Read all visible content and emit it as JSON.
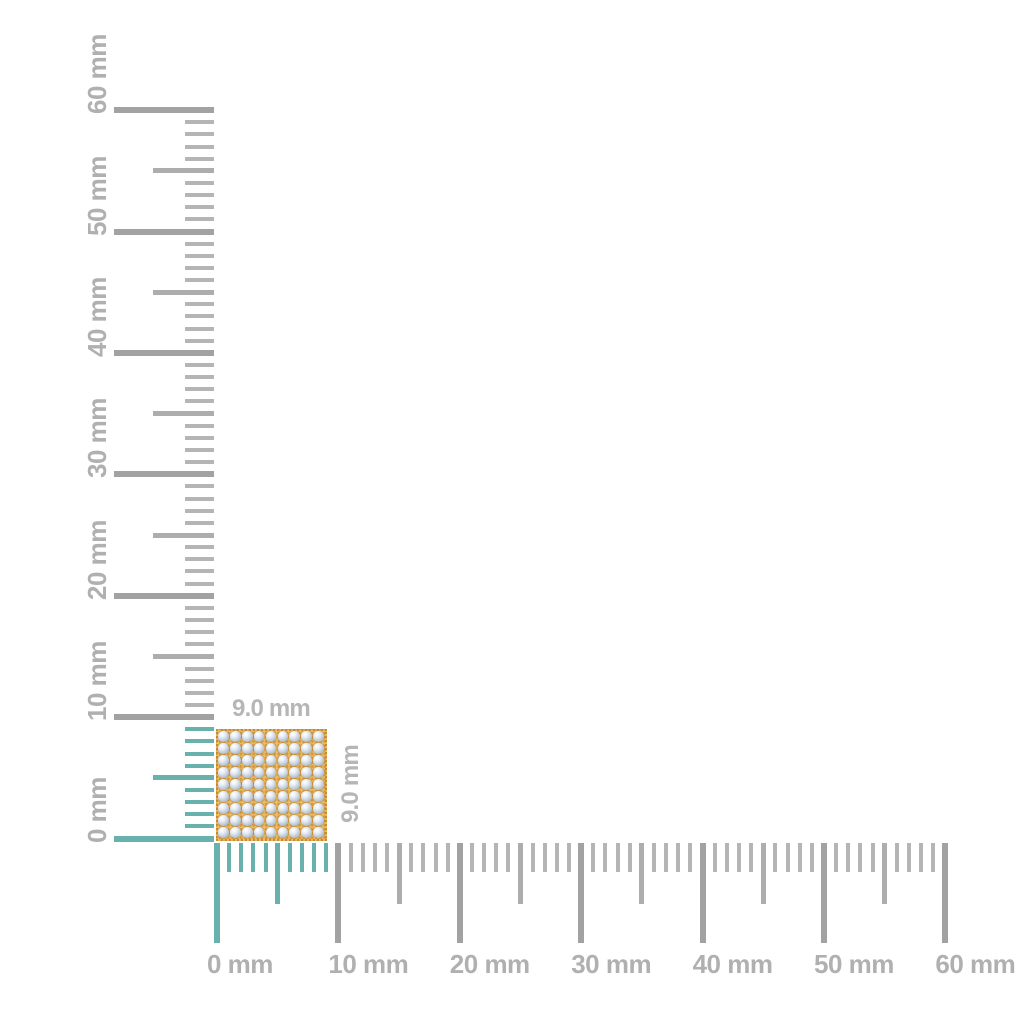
{
  "ruler": {
    "unit": "mm",
    "range_mm": [
      0,
      60
    ],
    "major_interval_mm": 10,
    "medium_interval_mm": 5,
    "minor_interval_mm": 1,
    "highlight_range_mm": [
      0,
      9
    ],
    "horizontal_labels": [
      "0 mm",
      "10 mm",
      "20 mm",
      "30 mm",
      "40 mm",
      "50 mm",
      "60 mm"
    ],
    "vertical_labels": [
      "0 mm",
      "10 mm",
      "20 mm",
      "30 mm",
      "40 mm",
      "50 mm",
      "60 mm"
    ],
    "colors": {
      "tick_minor": "#b5b5b5",
      "tick_medium": "#adadad",
      "tick_major": "#a2a2a2",
      "highlight": "#68b1ac",
      "axis_label": "#b0b0b0"
    }
  },
  "object": {
    "kind": "pave-diamond-square",
    "width_label": "9.0 mm",
    "height_label": "9.0 mm",
    "width_mm": 9.0,
    "height_mm": 9.0,
    "stone_rows": 9,
    "stone_cols": 9,
    "colors": {
      "metal": "#eebc67",
      "metal_bead": "#d2983d",
      "metal_bead_dark": "#c48d35",
      "stone_highlight": "#ffffff",
      "stone_mid": "#c3cfdd",
      "stone_shadow": "#8da0b7",
      "dimension_label": "#b6b6b6"
    }
  }
}
